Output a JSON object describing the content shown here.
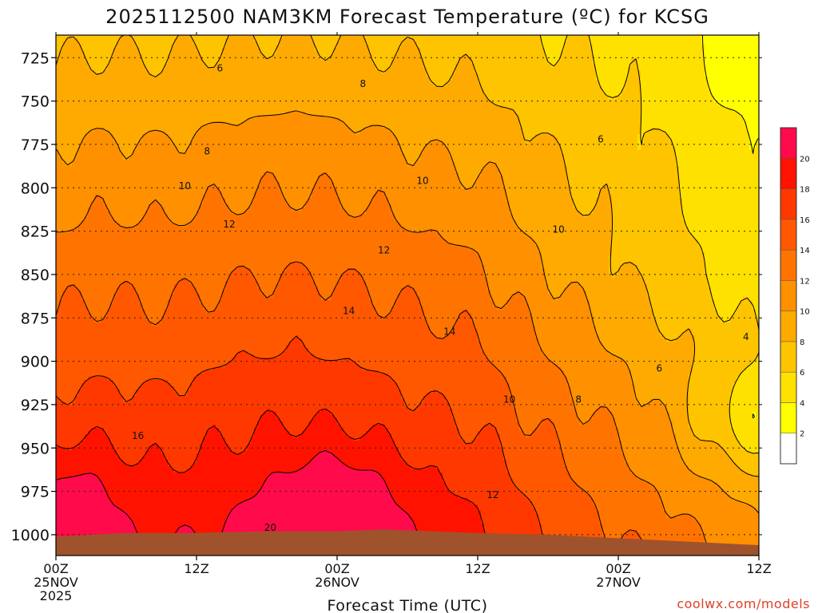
{
  "chart_data": {
    "type": "heatmap",
    "title": "2025112500 NAM3KM Forecast Temperature (ºC) for KCSG",
    "xlabel": "Forecast Time (UTC)",
    "ylabel": "",
    "x_ticks": [
      {
        "hour": 0,
        "lines": [
          "00Z",
          "25NOV",
          "2025"
        ]
      },
      {
        "hour": 12,
        "lines": [
          "12Z"
        ]
      },
      {
        "hour": 24,
        "lines": [
          "00Z",
          "26NOV"
        ]
      },
      {
        "hour": 36,
        "lines": [
          "12Z"
        ]
      },
      {
        "hour": 48,
        "lines": [
          "00Z",
          "27NOV"
        ]
      },
      {
        "hour": 60,
        "lines": [
          "12Z"
        ]
      }
    ],
    "xlim": [
      0,
      60
    ],
    "y_ticks": [
      725,
      750,
      775,
      800,
      825,
      850,
      875,
      900,
      925,
      950,
      975,
      1000
    ],
    "ylim_hPa": [
      712,
      1012
    ],
    "colorbar": {
      "ticks": [
        2,
        4,
        6,
        8,
        10,
        12,
        14,
        16,
        18,
        20
      ],
      "bands": [
        {
          "from": -99,
          "to": 2,
          "color": "#ffffff"
        },
        {
          "from": 2,
          "to": 4,
          "color": "#ffff00"
        },
        {
          "from": 4,
          "to": 6,
          "color": "#ffe100"
        },
        {
          "from": 6,
          "to": 8,
          "color": "#ffc400"
        },
        {
          "from": 8,
          "to": 10,
          "color": "#ffaa00"
        },
        {
          "from": 10,
          "to": 12,
          "color": "#ff9000"
        },
        {
          "from": 12,
          "to": 14,
          "color": "#ff7400"
        },
        {
          "from": 14,
          "to": 16,
          "color": "#ff5800"
        },
        {
          "from": 16,
          "to": 18,
          "color": "#ff3800"
        },
        {
          "from": 18,
          "to": 20,
          "color": "#ff1300"
        },
        {
          "from": 20,
          "to": 99,
          "color": "#ff0a4a"
        }
      ]
    },
    "contour_labels": [
      {
        "value": "6",
        "hour": 14.0,
        "p": 731
      },
      {
        "value": "8",
        "hour": 26.2,
        "p": 740
      },
      {
        "value": "8",
        "hour": 12.9,
        "p": 779
      },
      {
        "value": "6",
        "hour": 46.5,
        "p": 772
      },
      {
        "value": "10",
        "hour": 31.3,
        "p": 796
      },
      {
        "value": "10",
        "hour": 11.0,
        "p": 799
      },
      {
        "value": "12",
        "hour": 14.8,
        "p": 821
      },
      {
        "value": "10",
        "hour": 42.9,
        "p": 824
      },
      {
        "value": "12",
        "hour": 28.0,
        "p": 836
      },
      {
        "value": "14",
        "hour": 25.0,
        "p": 871
      },
      {
        "value": "14",
        "hour": 33.6,
        "p": 883
      },
      {
        "value": "6",
        "hour": 51.5,
        "p": 904
      },
      {
        "value": "4",
        "hour": 58.9,
        "p": 886
      },
      {
        "value": "10",
        "hour": 38.7,
        "p": 922
      },
      {
        "value": "8",
        "hour": 44.6,
        "p": 922
      },
      {
        "value": "16",
        "hour": 7.0,
        "p": 943
      },
      {
        "value": "12",
        "hour": 37.3,
        "p": 977
      },
      {
        "value": "20",
        "hour": 18.3,
        "p": 996
      }
    ],
    "surface_pressure": [
      [
        0,
        1001
      ],
      [
        6,
        999
      ],
      [
        12,
        999
      ],
      [
        18,
        998
      ],
      [
        24,
        998
      ],
      [
        28,
        997
      ],
      [
        32,
        998
      ],
      [
        36,
        999
      ],
      [
        42,
        1000
      ],
      [
        48,
        1002
      ],
      [
        54,
        1004
      ],
      [
        60,
        1006
      ]
    ],
    "grid": true,
    "credit": "coolwx.com/models"
  }
}
